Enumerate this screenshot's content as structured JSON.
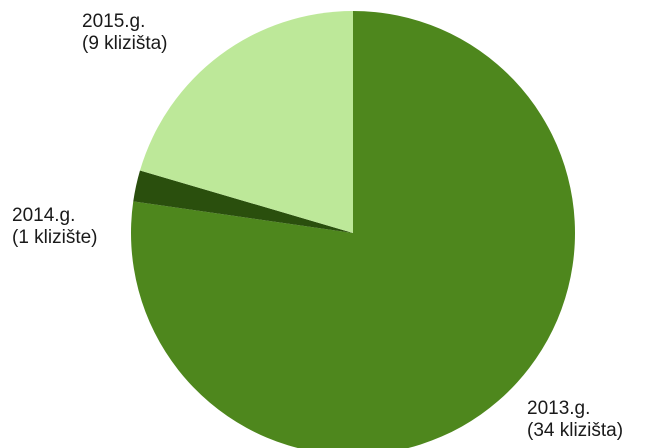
{
  "chart_data": {
    "type": "pie",
    "title": "",
    "slices": [
      {
        "year": "2013.g.",
        "count_label": "(34 klizišta)",
        "value": 34,
        "color": "#4e871d"
      },
      {
        "year": "2014.g.",
        "count_label": "(1 klizište)",
        "value": 1,
        "color": "#2a4f0d"
      },
      {
        "year": "2015.g.",
        "count_label": "(9 klizišta)",
        "value": 9,
        "color": "#bde899"
      }
    ],
    "start_angle_deg": 0,
    "direction": "clockwise",
    "legend": "none"
  }
}
